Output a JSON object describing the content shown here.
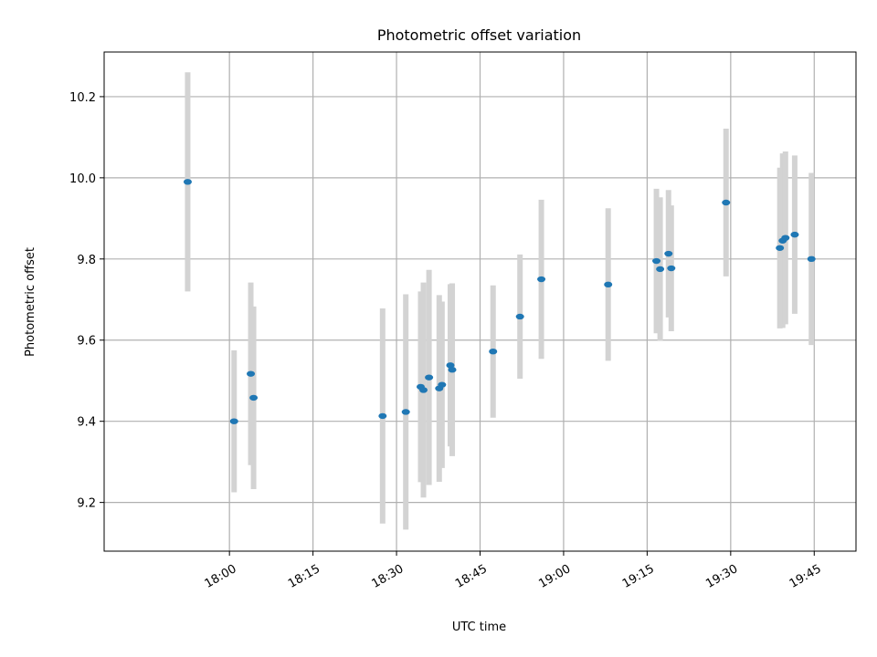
{
  "chart_data": {
    "type": "scatter",
    "title": "Photometric offset variation",
    "xlabel": "UTC time",
    "ylabel": "Photometric offset",
    "xlim": [
      "17:37:30",
      "19:52:30"
    ],
    "ylim": [
      9.08,
      10.31
    ],
    "xticks": [
      "18:00",
      "18:15",
      "18:30",
      "18:45",
      "19:00",
      "19:15",
      "19:30",
      "19:45"
    ],
    "yticks": [
      9.2,
      9.4,
      9.6,
      9.8,
      10.0,
      10.2
    ],
    "grid": true,
    "marker_color": "#1f77b4",
    "errorbar_color": "#d3d3d3",
    "points": [
      {
        "time": "17:52:30",
        "y": 9.99,
        "err": 0.27
      },
      {
        "time": "18:00:50",
        "y": 9.4,
        "err": 0.175
      },
      {
        "time": "18:03:50",
        "y": 9.517,
        "err": 0.225
      },
      {
        "time": "18:04:20",
        "y": 9.458,
        "err": 0.225
      },
      {
        "time": "18:27:30",
        "y": 9.413,
        "err": 0.265
      },
      {
        "time": "18:31:40",
        "y": 9.423,
        "err": 0.29
      },
      {
        "time": "18:34:20",
        "y": 9.485,
        "err": 0.235
      },
      {
        "time": "18:34:50",
        "y": 9.477,
        "err": 0.265
      },
      {
        "time": "18:35:50",
        "y": 9.508,
        "err": 0.265
      },
      {
        "time": "18:37:40",
        "y": 9.481,
        "err": 0.23
      },
      {
        "time": "18:38:10",
        "y": 9.49,
        "err": 0.205
      },
      {
        "time": "18:39:40",
        "y": 9.538,
        "err": 0.2
      },
      {
        "time": "18:40:00",
        "y": 9.527,
        "err": 0.213
      },
      {
        "time": "18:47:20",
        "y": 9.572,
        "err": 0.163
      },
      {
        "time": "18:52:10",
        "y": 9.658,
        "err": 0.153
      },
      {
        "time": "18:56:00",
        "y": 9.75,
        "err": 0.196
      },
      {
        "time": "19:08:00",
        "y": 9.737,
        "err": 0.188
      },
      {
        "time": "19:16:40",
        "y": 9.795,
        "err": 0.178
      },
      {
        "time": "19:17:20",
        "y": 9.775,
        "err": 0.177
      },
      {
        "time": "19:18:50",
        "y": 9.813,
        "err": 0.157
      },
      {
        "time": "19:19:20",
        "y": 9.777,
        "err": 0.155
      },
      {
        "time": "19:29:10",
        "y": 9.939,
        "err": 0.182
      },
      {
        "time": "19:38:50",
        "y": 9.827,
        "err": 0.198
      },
      {
        "time": "19:39:20",
        "y": 9.845,
        "err": 0.215
      },
      {
        "time": "19:39:50",
        "y": 9.852,
        "err": 0.213
      },
      {
        "time": "19:41:30",
        "y": 9.86,
        "err": 0.195
      },
      {
        "time": "19:44:30",
        "y": 9.8,
        "err": 0.212
      }
    ]
  }
}
